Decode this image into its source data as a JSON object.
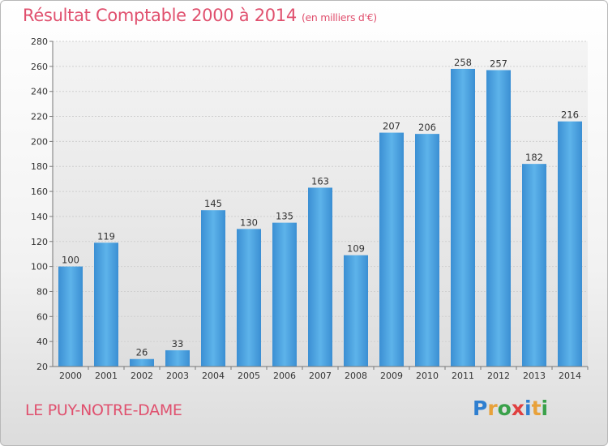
{
  "chart_data": {
    "type": "bar",
    "title": "Résultat Comptable 2000 à 2014",
    "subtitle": "(en milliers d'€)",
    "categories": [
      "2000",
      "2001",
      "2002",
      "2003",
      "2004",
      "2005",
      "2006",
      "2007",
      "2008",
      "2009",
      "2010",
      "2011",
      "2012",
      "2013",
      "2014"
    ],
    "values": [
      100,
      119,
      26,
      33,
      145,
      130,
      135,
      163,
      109,
      207,
      206,
      258,
      257,
      182,
      216
    ],
    "ylim": [
      20,
      280
    ],
    "yticks": [
      20,
      40,
      60,
      80,
      100,
      120,
      140,
      160,
      180,
      200,
      220,
      240,
      260,
      280
    ],
    "grid": true,
    "bar_color": "#4da3e0"
  },
  "footer": {
    "place": "LE PUY-NOTRE-DAME",
    "brand_letters": [
      {
        "ch": "P",
        "color": "#2f7fd0"
      },
      {
        "ch": "r",
        "color": "#e8a13a"
      },
      {
        "ch": "o",
        "color": "#3aa14a"
      },
      {
        "ch": "x",
        "color": "#e04040"
      },
      {
        "ch": "i",
        "color": "#2f7fd0"
      },
      {
        "ch": "t",
        "color": "#e8a13a"
      },
      {
        "ch": "i",
        "color": "#3aa14a"
      }
    ]
  }
}
